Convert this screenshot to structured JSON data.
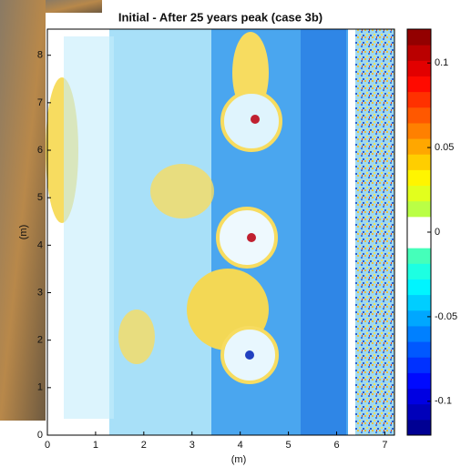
{
  "chart_data": {
    "type": "heatmap",
    "title": "Initial - After 25 years peak (case 3b)",
    "xlabel": "(m)",
    "ylabel": "(m)",
    "xlim": [
      0,
      7.2
    ],
    "ylim": [
      0,
      8.55
    ],
    "xticks": [
      0,
      1,
      2,
      3,
      4,
      5,
      6,
      7
    ],
    "yticks": [
      0,
      1,
      2,
      3,
      4,
      5,
      6,
      7,
      8
    ],
    "colormap": "jet",
    "clim": [
      -0.12,
      0.12
    ],
    "cticks": [
      -0.1,
      -0.05,
      0,
      0.05,
      0.1
    ]
  }
}
